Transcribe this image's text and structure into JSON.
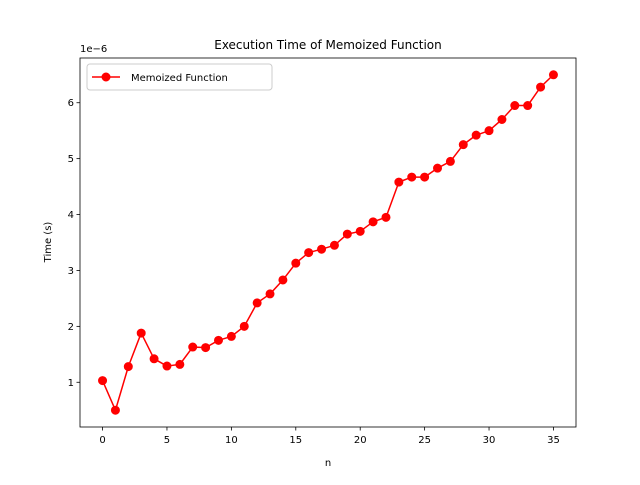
{
  "chart_data": {
    "type": "line",
    "title": "Execution Time of Memoized Function",
    "xlabel": "n",
    "ylabel": "Time (s)",
    "y_offset_label": "1e−6",
    "xlim": [
      -1.75,
      36.75
    ],
    "ylim": [
      0.2,
      6.8
    ],
    "x_ticks": [
      0,
      5,
      10,
      15,
      20,
      25,
      30,
      35
    ],
    "y_ticks": [
      1,
      2,
      3,
      4,
      5,
      6
    ],
    "x_tick_labels": [
      "0",
      "5",
      "10",
      "15",
      "20",
      "25",
      "30",
      "35"
    ],
    "y_tick_labels": [
      "1",
      "2",
      "3",
      "4",
      "5",
      "6"
    ],
    "legend_position": "upper-left",
    "grid": false,
    "series": [
      {
        "name": "Memoized Function",
        "color": "#ff0000",
        "marker": "circle",
        "x": [
          0,
          1,
          2,
          3,
          4,
          5,
          6,
          7,
          8,
          9,
          10,
          11,
          12,
          13,
          14,
          15,
          16,
          17,
          18,
          19,
          20,
          21,
          22,
          23,
          24,
          25,
          26,
          27,
          28,
          29,
          30,
          31,
          32,
          33,
          34,
          35
        ],
        "y": [
          1.03,
          0.5,
          1.28,
          1.88,
          1.42,
          1.29,
          1.32,
          1.63,
          1.62,
          1.75,
          1.82,
          2.0,
          2.42,
          2.58,
          2.83,
          3.13,
          3.32,
          3.38,
          3.45,
          3.65,
          3.7,
          3.87,
          3.95,
          4.58,
          4.67,
          4.67,
          4.83,
          4.95,
          5.25,
          5.42,
          5.5,
          5.7,
          5.95,
          5.95,
          6.28,
          6.5
        ]
      }
    ]
  }
}
